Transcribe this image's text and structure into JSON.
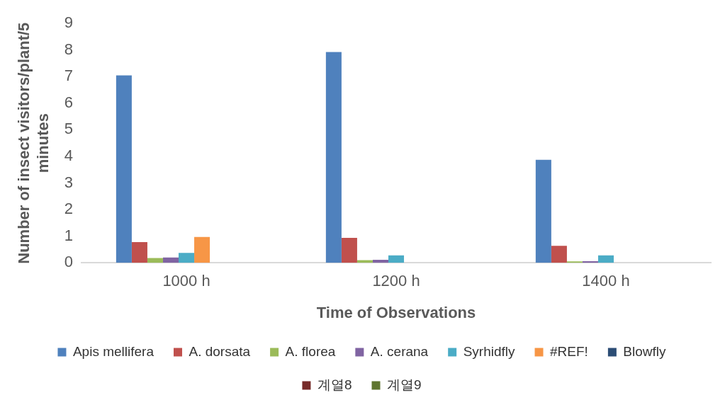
{
  "chart_data": {
    "type": "bar",
    "xlabel": "Time of Observations",
    "ylabel": "Number of insect visitors/plant/5 minutes",
    "categories": [
      "1000 h",
      "1200 h",
      "1400 h"
    ],
    "series": [
      {
        "name": "Apis mellifera",
        "color": "#4f81bd",
        "values": [
          7.05,
          7.93,
          3.87
        ]
      },
      {
        "name": "A. dorsata",
        "color": "#c0504d",
        "values": [
          0.78,
          0.94,
          0.64
        ]
      },
      {
        "name": "A. florea",
        "color": "#9bbb59",
        "values": [
          0.18,
          0.1,
          0.05
        ]
      },
      {
        "name": "A. cerana",
        "color": "#8064a2",
        "values": [
          0.2,
          0.11,
          0.06
        ]
      },
      {
        "name": "Syrhidfly",
        "color": "#4bacc6",
        "values": [
          0.37,
          0.28,
          0.28
        ]
      },
      {
        "name": "#REF!",
        "color": "#f79646",
        "values": [
          0.97,
          0,
          0
        ]
      },
      {
        "name": "Blowfly",
        "color": "#2c4d75",
        "values": [
          0,
          0,
          0
        ]
      },
      {
        "name": "계열8",
        "color": "#772c2a",
        "values": [
          0,
          0,
          0
        ]
      },
      {
        "name": "계열9",
        "color": "#5f7530",
        "values": [
          0,
          0,
          0
        ]
      }
    ],
    "ylim": [
      0,
      9
    ],
    "yticks": [
      0,
      1,
      2,
      3,
      4,
      5,
      6,
      7,
      8,
      9
    ],
    "grid": false,
    "legend": "bottom"
  }
}
